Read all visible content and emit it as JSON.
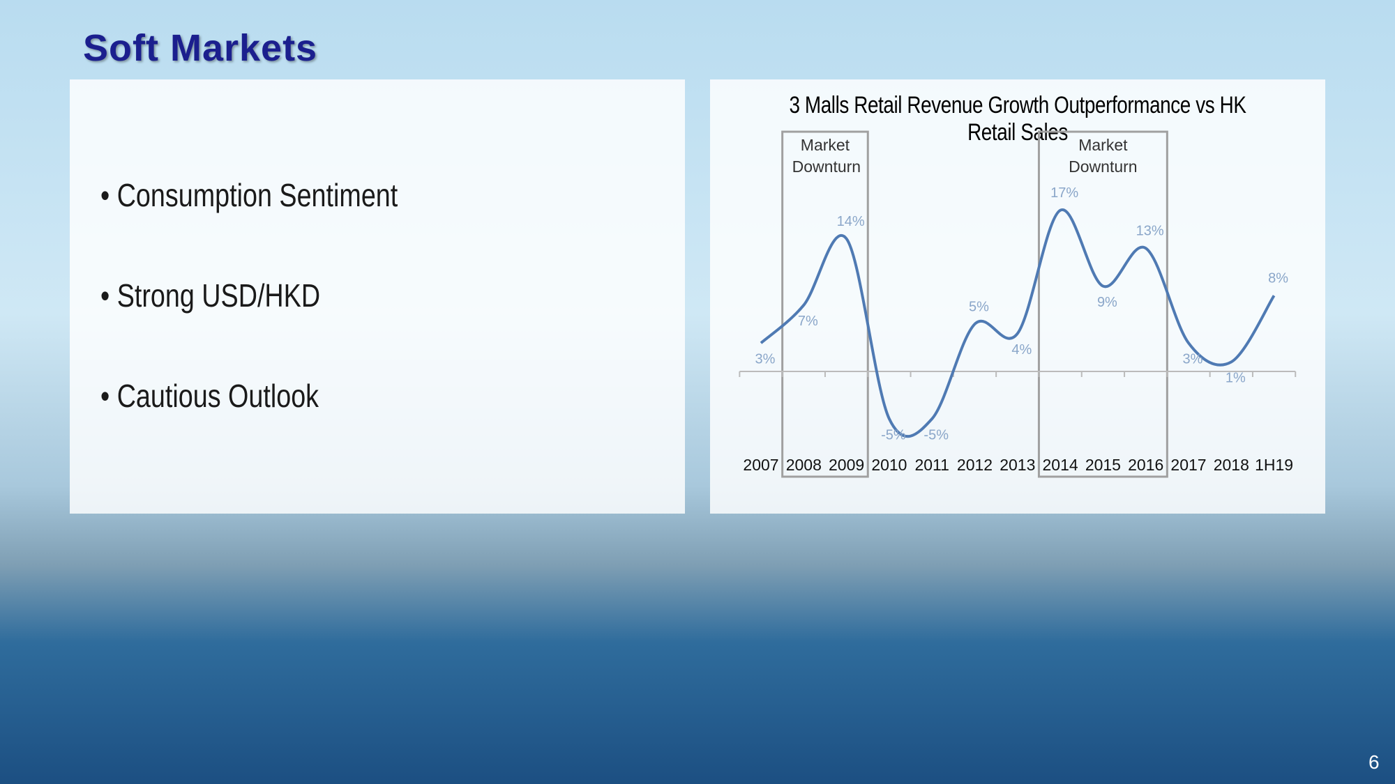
{
  "title": "Soft Markets",
  "bullets": [
    "Consumption Sentiment",
    "Strong USD/HKD",
    "Cautious Outlook"
  ],
  "page_number": "6",
  "chart_data": {
    "type": "line",
    "title": "3 Malls Retail Revenue Growth Outperformance vs HK Retail Sales",
    "categories": [
      "2007",
      "2008",
      "2009",
      "2010",
      "2011",
      "2012",
      "2013",
      "2014",
      "2015",
      "2016",
      "2017",
      "2018",
      "1H19"
    ],
    "values": [
      3,
      7,
      14,
      -5,
      -5,
      5,
      4,
      17,
      9,
      13,
      3,
      1,
      8
    ],
    "value_labels": [
      "3%",
      "7%",
      "14%",
      "-5%",
      "-5%",
      "5%",
      "4%",
      "17%",
      "9%",
      "13%",
      "3%",
      "1%",
      "8%"
    ],
    "color": "#4f7ab3",
    "annotations": [
      {
        "text": "Market Downturn",
        "categories": [
          "2008",
          "2009"
        ]
      },
      {
        "text": "Market Downturn",
        "categories": [
          "2014",
          "2016"
        ]
      }
    ]
  }
}
